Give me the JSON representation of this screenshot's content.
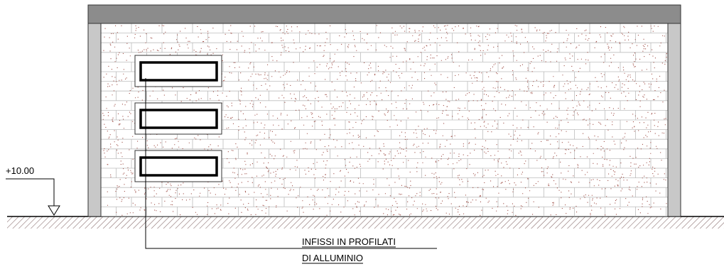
{
  "level": {
    "label": "+10.00"
  },
  "note": {
    "lines": [
      "INFISSI IN PROFILATI",
      "DI ALLUMINIO"
    ]
  }
}
